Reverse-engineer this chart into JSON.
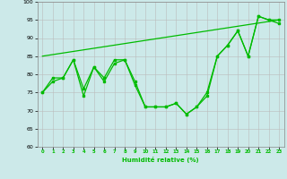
{
  "xlabel": "Humidité relative (%)",
  "xlim": [
    -0.5,
    23.5
  ],
  "ylim": [
    60,
    100
  ],
  "yticks": [
    60,
    65,
    70,
    75,
    80,
    85,
    90,
    95,
    100
  ],
  "xticks": [
    0,
    1,
    2,
    3,
    4,
    5,
    6,
    7,
    8,
    9,
    10,
    11,
    12,
    13,
    14,
    15,
    16,
    17,
    18,
    19,
    20,
    21,
    22,
    23
  ],
  "background_color": "#cce9e9",
  "grid_color": "#bbbbbb",
  "line_color": "#00bb00",
  "line1": [
    75,
    78,
    79,
    84,
    74,
    82,
    78,
    83,
    84,
    77,
    71,
    71,
    71,
    72,
    69,
    71,
    75,
    85,
    88,
    92,
    85,
    96,
    95,
    94
  ],
  "line2": [
    75,
    79,
    79,
    84,
    76,
    82,
    79,
    84,
    84,
    78,
    71,
    71,
    71,
    72,
    69,
    71,
    74,
    85,
    88,
    92,
    85,
    96,
    95,
    95
  ],
  "line3_x": [
    0,
    23
  ],
  "line3_y": [
    85,
    95
  ]
}
